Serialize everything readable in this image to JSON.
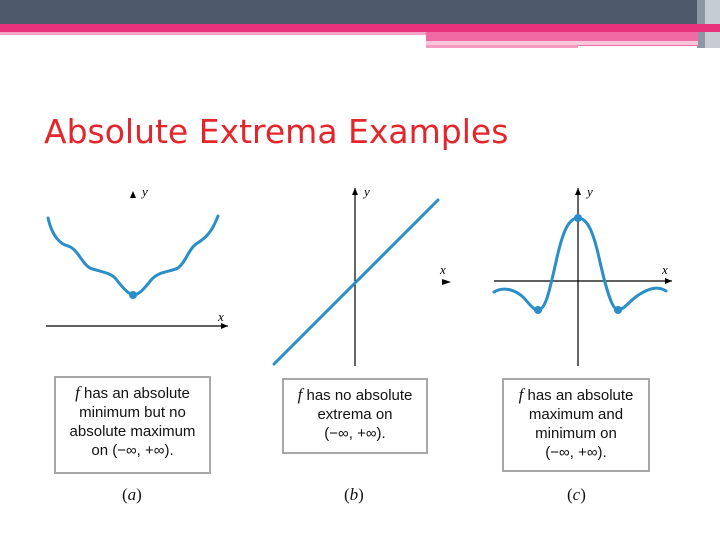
{
  "title": "Absolute Extrema Examples",
  "graphs": [
    {
      "axis_x": "x",
      "axis_y": "y",
      "caption_lines": [
        "has an absolute",
        "minimum but no",
        "absolute maximum",
        "on (−∞, +∞)."
      ],
      "caption_f": "f",
      "label_open": "(",
      "label_letter": "a",
      "label_close": ")"
    },
    {
      "axis_x": "x",
      "axis_y": "y",
      "caption_lines": [
        "has no absolute",
        "extrema on",
        "(−∞, +∞)."
      ],
      "caption_f": "f",
      "label_open": "(",
      "label_letter": "b",
      "label_close": ")"
    },
    {
      "axis_x": "x",
      "axis_y": "y",
      "caption_lines": [
        "has an absolute",
        "maximum and",
        "minimum on",
        "(−∞, +∞)."
      ],
      "caption_f": "f",
      "label_open": "(",
      "label_letter": "c",
      "label_close": ")"
    }
  ],
  "colors": {
    "curve": "#2a8ec8",
    "title": "#e3262b",
    "accent_pink": "#e8327c",
    "bar": "#4e5a6b"
  }
}
